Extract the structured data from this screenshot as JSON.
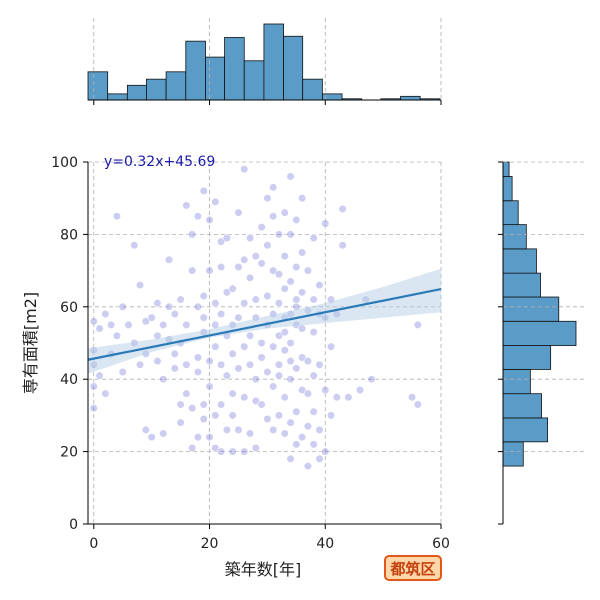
{
  "chart_data": {
    "type": "scatter",
    "title": "",
    "xlabel": "築年数[年]",
    "ylabel": "専有面積[m2]",
    "xlim": [
      -1,
      60
    ],
    "ylim": [
      0,
      100
    ],
    "x_ticks": [
      "0",
      "20",
      "40",
      "60"
    ],
    "y_ticks": [
      "0",
      "20",
      "40",
      "60",
      "80",
      "100"
    ],
    "grid": true,
    "regression": {
      "label": "y=0.32x+45.69",
      "slope": 0.32,
      "intercept": 45.69,
      "ci_low": [
        [
          -1,
          41.5
        ],
        [
          10,
          47.5
        ],
        [
          20,
          51.5
        ],
        [
          30,
          54.0
        ],
        [
          40,
          55.5
        ],
        [
          50,
          57.0
        ],
        [
          60,
          58.5
        ]
      ],
      "ci_high": [
        [
          -1,
          48.5
        ],
        [
          10,
          51.0
        ],
        [
          20,
          53.8
        ],
        [
          30,
          57.5
        ],
        [
          40,
          61.0
        ],
        [
          50,
          65.5
        ],
        [
          60,
          70.5
        ]
      ],
      "line_color": "#2a7ab8",
      "band_color": "#b6cfe6"
    },
    "point_color": "#6f6fd8",
    "bar_color": "#5b9bc8",
    "x_histogram": {
      "bins": [
        -1,
        2.4,
        5.8,
        9.1,
        12.5,
        15.9,
        19.3,
        22.6,
        26.0,
        29.4,
        32.8,
        36.1,
        39.5,
        42.9,
        46.3,
        49.6,
        53.0,
        56.4,
        59.8
      ],
      "counts": [
        23,
        5,
        12,
        17,
        23,
        48,
        35,
        51,
        32,
        62,
        52,
        17,
        5,
        1,
        0,
        1,
        3,
        1
      ]
    },
    "y_histogram": {
      "bins": [
        16,
        22.7,
        29.3,
        36,
        42.7,
        49.3,
        56,
        62.7,
        69.3,
        76,
        82.7,
        89.3,
        96,
        100
      ],
      "counts": [
        20,
        44,
        38,
        27,
        47,
        72,
        55,
        37,
        33,
        23,
        15,
        9,
        6
      ]
    },
    "points": [
      [
        0,
        56
      ],
      [
        0,
        48
      ],
      [
        0,
        44
      ],
      [
        0,
        38
      ],
      [
        0,
        32
      ],
      [
        1,
        54
      ],
      [
        1,
        41
      ],
      [
        2,
        58
      ],
      [
        2,
        36
      ],
      [
        3,
        55
      ],
      [
        4,
        85
      ],
      [
        3,
        47
      ],
      [
        4,
        52
      ],
      [
        5,
        42
      ],
      [
        5,
        60
      ],
      [
        6,
        55
      ],
      [
        7,
        50
      ],
      [
        7,
        77
      ],
      [
        8,
        66
      ],
      [
        8,
        44
      ],
      [
        9,
        47
      ],
      [
        9,
        56
      ],
      [
        9,
        26
      ],
      [
        10,
        24
      ],
      [
        10,
        57
      ],
      [
        11,
        52
      ],
      [
        11,
        61
      ],
      [
        11,
        45
      ],
      [
        12,
        40
      ],
      [
        12,
        25
      ],
      [
        12,
        55
      ],
      [
        13,
        51
      ],
      [
        13,
        60
      ],
      [
        13,
        73
      ],
      [
        14,
        47
      ],
      [
        14,
        43
      ],
      [
        14,
        58
      ],
      [
        15,
        62
      ],
      [
        15,
        50
      ],
      [
        15,
        33
      ],
      [
        15,
        28
      ],
      [
        16,
        88
      ],
      [
        16,
        44
      ],
      [
        16,
        36
      ],
      [
        16,
        55
      ],
      [
        17,
        32
      ],
      [
        17,
        21
      ],
      [
        17,
        70
      ],
      [
        17,
        80
      ],
      [
        18,
        24
      ],
      [
        18,
        46
      ],
      [
        18,
        60
      ],
      [
        18,
        85
      ],
      [
        18,
        42
      ],
      [
        19,
        29
      ],
      [
        19,
        33
      ],
      [
        19,
        57
      ],
      [
        19,
        92
      ],
      [
        19,
        53
      ],
      [
        19,
        63
      ],
      [
        20,
        24
      ],
      [
        20,
        38
      ],
      [
        20,
        45
      ],
      [
        20,
        70
      ],
      [
        20,
        84
      ],
      [
        21,
        21
      ],
      [
        21,
        30
      ],
      [
        21,
        89
      ],
      [
        21,
        55
      ],
      [
        21,
        61
      ],
      [
        21,
        49
      ],
      [
        22,
        58
      ],
      [
        22,
        71
      ],
      [
        22,
        20
      ],
      [
        22,
        44
      ],
      [
        22,
        33
      ],
      [
        22,
        78
      ],
      [
        23,
        26
      ],
      [
        23,
        41
      ],
      [
        23,
        52
      ],
      [
        23,
        64
      ],
      [
        23,
        79
      ],
      [
        24,
        20
      ],
      [
        24,
        36
      ],
      [
        24,
        55
      ],
      [
        24,
        65
      ],
      [
        24,
        47
      ],
      [
        24,
        30
      ],
      [
        25,
        26
      ],
      [
        25,
        71
      ],
      [
        25,
        57
      ],
      [
        25,
        43
      ],
      [
        25,
        86
      ],
      [
        26,
        20
      ],
      [
        26,
        35
      ],
      [
        26,
        49
      ],
      [
        26,
        61
      ],
      [
        26,
        73
      ],
      [
        26,
        98
      ],
      [
        27,
        25
      ],
      [
        27,
        44
      ],
      [
        27,
        52
      ],
      [
        27,
        68
      ],
      [
        27,
        79
      ],
      [
        28,
        34
      ],
      [
        28,
        40
      ],
      [
        28,
        57
      ],
      [
        28,
        62
      ],
      [
        28,
        74
      ],
      [
        28,
        21
      ],
      [
        29,
        33
      ],
      [
        29,
        50
      ],
      [
        29,
        72
      ],
      [
        29,
        82
      ],
      [
        29,
        46
      ],
      [
        30,
        29
      ],
      [
        30,
        42
      ],
      [
        30,
        55
      ],
      [
        30,
        63
      ],
      [
        30,
        77
      ],
      [
        30,
        90
      ],
      [
        31,
        26
      ],
      [
        31,
        38
      ],
      [
        31,
        49
      ],
      [
        31,
        58
      ],
      [
        31,
        70
      ],
      [
        31,
        85
      ],
      [
        31,
        93
      ],
      [
        32,
        30
      ],
      [
        32,
        44
      ],
      [
        32,
        52
      ],
      [
        32,
        61
      ],
      [
        32,
        69
      ],
      [
        32,
        80
      ],
      [
        32,
        41
      ],
      [
        33,
        25
      ],
      [
        33,
        35
      ],
      [
        33,
        48
      ],
      [
        33,
        57
      ],
      [
        33,
        65
      ],
      [
        33,
        74
      ],
      [
        33,
        86
      ],
      [
        33,
        53
      ],
      [
        34,
        18
      ],
      [
        34,
        28
      ],
      [
        34,
        40
      ],
      [
        34,
        50
      ],
      [
        34,
        58
      ],
      [
        34,
        67
      ],
      [
        34,
        80
      ],
      [
        34,
        96
      ],
      [
        34,
        45
      ],
      [
        35,
        22
      ],
      [
        35,
        31
      ],
      [
        35,
        43
      ],
      [
        35,
        55
      ],
      [
        35,
        62
      ],
      [
        35,
        71
      ],
      [
        35,
        84
      ],
      [
        35,
        60
      ],
      [
        36,
        24
      ],
      [
        36,
        37
      ],
      [
        36,
        46
      ],
      [
        36,
        54
      ],
      [
        36,
        64
      ],
      [
        36,
        75
      ],
      [
        36,
        90
      ],
      [
        37,
        27
      ],
      [
        37,
        36
      ],
      [
        37,
        45
      ],
      [
        37,
        59
      ],
      [
        37,
        70
      ],
      [
        37,
        16
      ],
      [
        38,
        22
      ],
      [
        38,
        41
      ],
      [
        38,
        53
      ],
      [
        38,
        62
      ],
      [
        38,
        79
      ],
      [
        38,
        31
      ],
      [
        39,
        18
      ],
      [
        39,
        26
      ],
      [
        39,
        44
      ],
      [
        39,
        58
      ],
      [
        39,
        66
      ],
      [
        40,
        20
      ],
      [
        40,
        37
      ],
      [
        40,
        57
      ],
      [
        40,
        83
      ],
      [
        41,
        30
      ],
      [
        41,
        49
      ],
      [
        41,
        62
      ],
      [
        42,
        35
      ],
      [
        42,
        58
      ],
      [
        43,
        87
      ],
      [
        43,
        77
      ],
      [
        44,
        35
      ],
      [
        46,
        37
      ],
      [
        47,
        62
      ],
      [
        48,
        40
      ],
      [
        55,
        35
      ],
      [
        56,
        55
      ],
      [
        56,
        33
      ]
    ]
  },
  "badge": {
    "text": "都筑区"
  }
}
